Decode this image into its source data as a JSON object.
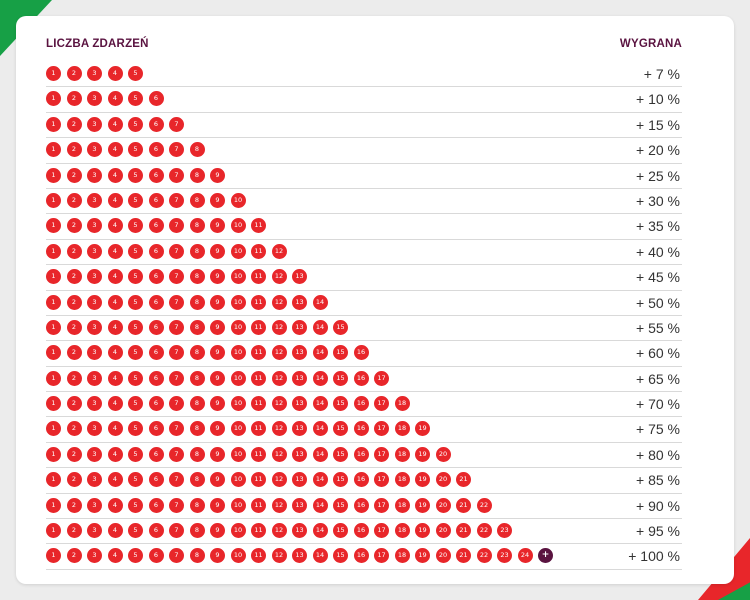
{
  "header": {
    "events_label": "LICZBA ZDARZEŃ",
    "win_label": "WYGRANA"
  },
  "rows": [
    {
      "events": 5,
      "win": "+ 7 %"
    },
    {
      "events": 6,
      "win": "+ 10 %"
    },
    {
      "events": 7,
      "win": "+ 15 %"
    },
    {
      "events": 8,
      "win": "+ 20 %"
    },
    {
      "events": 9,
      "win": "+ 25 %"
    },
    {
      "events": 10,
      "win": "+ 30 %"
    },
    {
      "events": 11,
      "win": "+ 35 %"
    },
    {
      "events": 12,
      "win": "+ 40 %"
    },
    {
      "events": 13,
      "win": "+ 45 %"
    },
    {
      "events": 14,
      "win": "+ 50 %"
    },
    {
      "events": 15,
      "win": "+ 55 %"
    },
    {
      "events": 16,
      "win": "+ 60 %"
    },
    {
      "events": 17,
      "win": "+ 65 %"
    },
    {
      "events": 18,
      "win": "+ 70 %"
    },
    {
      "events": 19,
      "win": "+ 75 %"
    },
    {
      "events": 20,
      "win": "+ 80 %"
    },
    {
      "events": 21,
      "win": "+ 85 %"
    },
    {
      "events": 22,
      "win": "+ 90 %"
    },
    {
      "events": 23,
      "win": "+ 95 %"
    },
    {
      "events": 24,
      "win": "+ 100 %",
      "bonus": "+"
    }
  ],
  "colors": {
    "ball": "#e8262a",
    "bonus_ball": "#5a1340",
    "heading": "#5a1340",
    "accent_green": "#17a046"
  }
}
